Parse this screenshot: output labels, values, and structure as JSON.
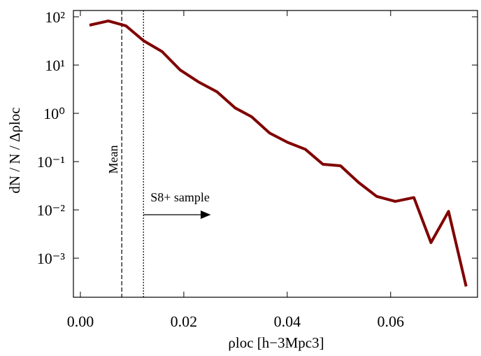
{
  "chart_data": {
    "type": "line",
    "xlabel": "ρloc [h−3Mpc3]",
    "ylabel": "dN / N / Δρloc",
    "x": [
      0.00176,
      0.0054,
      0.0088,
      0.0122,
      0.0158,
      0.0193,
      0.0228,
      0.0264,
      0.0299,
      0.0331,
      0.0366,
      0.0401,
      0.0435,
      0.0469,
      0.0503,
      0.0538,
      0.0573,
      0.0609,
      0.0645,
      0.0678,
      0.0712,
      0.0746
    ],
    "series": [
      {
        "color": "#800000",
        "values": [
          67,
          82,
          65,
          32,
          19,
          7.9,
          4.5,
          2.8,
          1.3,
          0.85,
          0.39,
          0.25,
          0.18,
          0.088,
          0.082,
          0.037,
          0.019,
          0.015,
          0.018,
          0.0021,
          0.0093,
          0.00026
        ]
      }
    ],
    "xlim": [
      -0.00135,
      0.0768
    ],
    "ylim": [
      0.000155,
      135
    ],
    "yscale": "log",
    "xticks": [
      {
        "value": 0,
        "label": "0.00"
      },
      {
        "value": 0.02,
        "label": "0.02"
      },
      {
        "value": 0.04,
        "label": "0.04"
      },
      {
        "value": 0.06,
        "label": "0.06"
      }
    ],
    "yticks": [
      {
        "value": 0.001,
        "label": "10⁻³"
      },
      {
        "value": 0.01,
        "label": "10⁻²"
      },
      {
        "value": 0.1,
        "label": "10⁻¹"
      },
      {
        "value": 1,
        "label": "10⁰"
      },
      {
        "value": 10,
        "label": "10¹"
      },
      {
        "value": 100,
        "label": "10²"
      }
    ],
    "annotations": [
      {
        "text": "Mean",
        "x": 0.008,
        "style": "dashed"
      },
      {
        "text": "S8+ sample",
        "x": 0.0122,
        "style": "dotted"
      }
    ]
  }
}
